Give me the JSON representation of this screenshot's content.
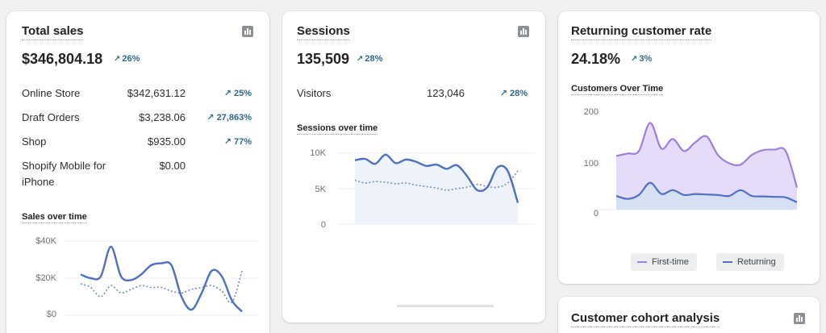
{
  "colors": {
    "primary_line": "#4f6fc4",
    "comparison_line": "#6e8ec0",
    "first_time": "#9d7ee0",
    "returning": "#4f6fc4",
    "trend": "#2e6a8e"
  },
  "total_sales": {
    "title": "Total sales",
    "value": "$346,804.18",
    "trend": "26%",
    "rows": [
      {
        "label": "Online Store",
        "value": "$342,631.12",
        "trend": "25%"
      },
      {
        "label": "Draft Orders",
        "value": "$3,238.06",
        "trend": "27,863%"
      },
      {
        "label": "Shop",
        "value": "$935.00",
        "trend": "77%"
      },
      {
        "label": "Shopify Mobile for iPhone",
        "value": "$0.00",
        "trend": ""
      }
    ],
    "chart_title": "Sales over time"
  },
  "sessions": {
    "title": "Sessions",
    "value": "135,509",
    "trend": "28%",
    "rows": [
      {
        "label": "Visitors",
        "value": "123,046",
        "trend": "28%"
      }
    ],
    "chart_title": "Sessions over time"
  },
  "returning": {
    "title": "Returning customer rate",
    "value": "24.18%",
    "trend": "3%",
    "chart_title": "Customers Over Time",
    "legend": [
      {
        "label": "First-time"
      },
      {
        "label": "Returning"
      }
    ]
  },
  "cohort": {
    "title": "Customer cohort analysis"
  },
  "chart_data": [
    {
      "type": "line",
      "title": "Sales over time",
      "ylim": [
        0,
        40000
      ],
      "yticks": [
        "$40K",
        "$20K",
        "$0"
      ],
      "series": [
        {
          "values": [
            22000,
            20000,
            21000,
            37000,
            21000,
            19000,
            22000,
            27000,
            28000,
            27000,
            10000,
            3000,
            12000,
            24000,
            21000,
            8000,
            2000
          ]
        },
        {
          "values": [
            17000,
            15000,
            10000,
            16000,
            12000,
            14000,
            16000,
            15000,
            15000,
            13000,
            12000,
            14000,
            15000,
            16000,
            13000,
            7000,
            24000
          ]
        }
      ]
    },
    {
      "type": "line",
      "title": "Sessions over time",
      "ylim": [
        0,
        10000
      ],
      "yticks": [
        "10K",
        "5K",
        "0"
      ],
      "series": [
        {
          "values": [
            9000,
            9200,
            8500,
            9800,
            8600,
            9100,
            8800,
            8200,
            8400,
            7800,
            8300,
            6800,
            4800,
            5200,
            8000,
            7500,
            3000
          ]
        },
        {
          "values": [
            6200,
            5800,
            6000,
            5900,
            5700,
            5800,
            5500,
            5300,
            5100,
            4800,
            5000,
            5200,
            5600,
            5300,
            5200,
            5800,
            7500
          ]
        }
      ]
    },
    {
      "type": "area",
      "title": "Customers Over Time",
      "ylim": [
        0,
        200
      ],
      "yticks": [
        "200",
        "100",
        "0"
      ],
      "series": [
        {
          "name": "First-time",
          "values": [
            110,
            115,
            120,
            178,
            125,
            145,
            120,
            138,
            150,
            112,
            95,
            92,
            112,
            122,
            123,
            120,
            45
          ]
        },
        {
          "name": "Returning",
          "values": [
            28,
            22,
            30,
            55,
            32,
            40,
            30,
            32,
            31,
            30,
            28,
            40,
            28,
            27,
            26,
            25,
            15
          ]
        }
      ]
    }
  ]
}
